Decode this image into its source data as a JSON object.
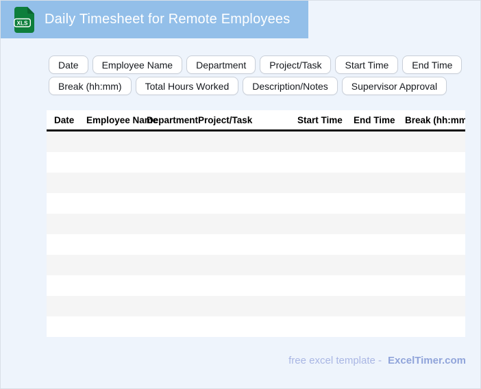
{
  "banner": {
    "title": "Daily Timesheet for Remote Employees",
    "icon_label": "XLS",
    "bg_color": "#93bfe9",
    "icon_green": "#0e7e3c",
    "icon_green_dark": "#0a6530"
  },
  "chips": {
    "row1": [
      "Date",
      "Employee Name",
      "Department",
      "Project/Task",
      "Start Time",
      "End Time"
    ],
    "row2": [
      "Break (hh:mm)",
      "Total Hours Worked",
      "Description/Notes",
      "Supervisor Approval"
    ]
  },
  "table": {
    "columns": [
      "Date",
      "Employee Name",
      "Department",
      "Project/Task",
      "Start Time",
      "End Time",
      "Break (hh:mm)"
    ],
    "row_count": 10,
    "row_alt_color": "#f5f5f5",
    "header_rule_color": "#0d0d0d",
    "cells_empty": true
  },
  "footer": {
    "text": "free excel template -",
    "brand": "ExcelTimer.com"
  },
  "colors": {
    "page_bg": "#eef4fc",
    "page_border": "#d9dfe8",
    "chip_border": "#c9cfd8",
    "footer_text": "#a9b6e4",
    "footer_brand": "#90a4da"
  }
}
